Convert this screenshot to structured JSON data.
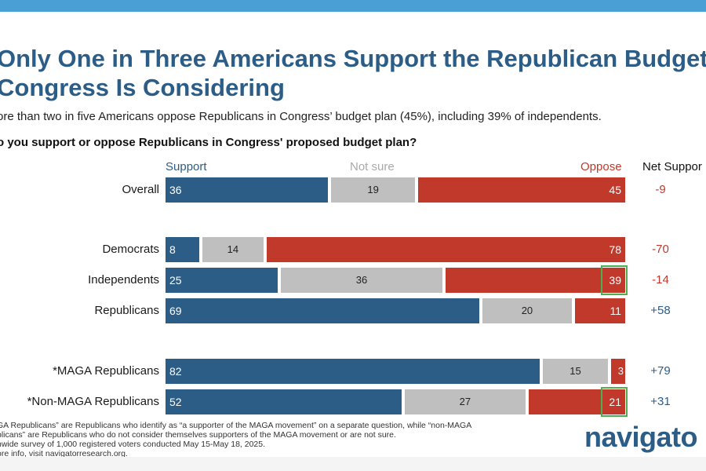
{
  "title": "Only One in Three Americans Support the Republican Budget Congress Is Considering",
  "subtitle": "ore than two in five Americans oppose Republicans in Congress’ budget plan (45%), including 39% of independents.",
  "question": "o you support or oppose Republicans in Congress' proposed budget plan?",
  "logo": "navigato",
  "footnotes": [
    "GA Republicans” are Republicans who identify as “a supporter of the MAGA movement” on a separate question, while “non-MAGA",
    "blicans” are Republicans who do not consider themselves supporters of the MAGA movement or are not sure.",
    "nwide survey of 1,000 registered voters conducted May 15-May 18, 2025.",
    "ore info, visit navigatorresearch.org."
  ],
  "chart_data": {
    "type": "bar",
    "orientation": "horizontal-stacked",
    "headers": {
      "support": "Support",
      "not_sure": "Not sure",
      "oppose": "Oppose",
      "net": "Net Suppor"
    },
    "categories": [
      "Overall",
      "Democrats",
      "Independents",
      "Republicans",
      "*MAGA Republicans",
      "*Non-MAGA Republicans"
    ],
    "series": [
      {
        "name": "Support",
        "values": [
          36,
          8,
          25,
          69,
          82,
          52
        ]
      },
      {
        "name": "Not sure",
        "values": [
          19,
          14,
          36,
          20,
          15,
          27
        ]
      },
      {
        "name": "Oppose",
        "values": [
          45,
          78,
          39,
          11,
          3,
          21
        ]
      }
    ],
    "net": [
      "-9",
      "-70",
      "-14",
      "+58",
      "+79",
      "+31"
    ],
    "highlighted": [
      {
        "category": "Independents",
        "series": "Oppose"
      },
      {
        "category": "*Non-MAGA Republicans",
        "series": "Oppose"
      }
    ],
    "colors": {
      "support": "#2c5d87",
      "not_sure": "#bfbfbf",
      "oppose": "#c0392b",
      "negative_net": "#c0392b",
      "positive_net": "#2c5d87",
      "highlight": "#4caf50"
    },
    "xlim": [
      0,
      100
    ]
  }
}
